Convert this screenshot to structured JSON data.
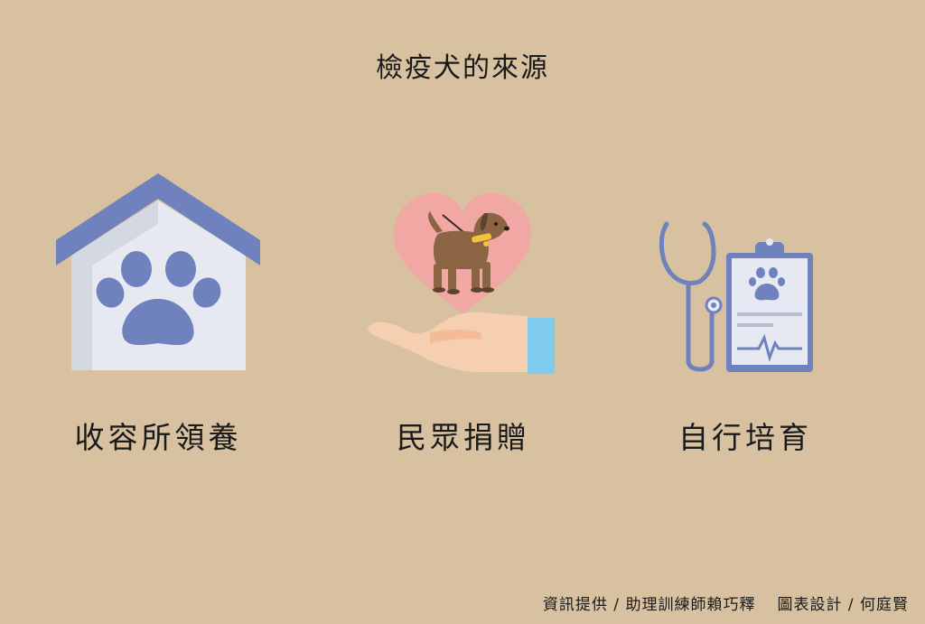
{
  "title": "檢疫犬的來源",
  "sources": [
    {
      "label": "收容所領養",
      "icon": "shelter-house-paw-icon"
    },
    {
      "label": "民眾捐贈",
      "icon": "hand-heart-dog-icon"
    },
    {
      "label": "自行培育",
      "icon": "stethoscope-clipboard-icon"
    }
  ],
  "footer": {
    "info": "資訊提供 / 助理訓練師賴巧釋",
    "design": "圖表設計 / 何庭賢"
  },
  "colors": {
    "background": "#d7c1a1",
    "roof": "#6f82bd",
    "house_wall": "#e6e9f1",
    "heart": "#f1a7a3",
    "dog": "#8a6443",
    "hand": "#f6cfb0",
    "cuff": "#7fcbee",
    "medical": "#6f82bd"
  }
}
